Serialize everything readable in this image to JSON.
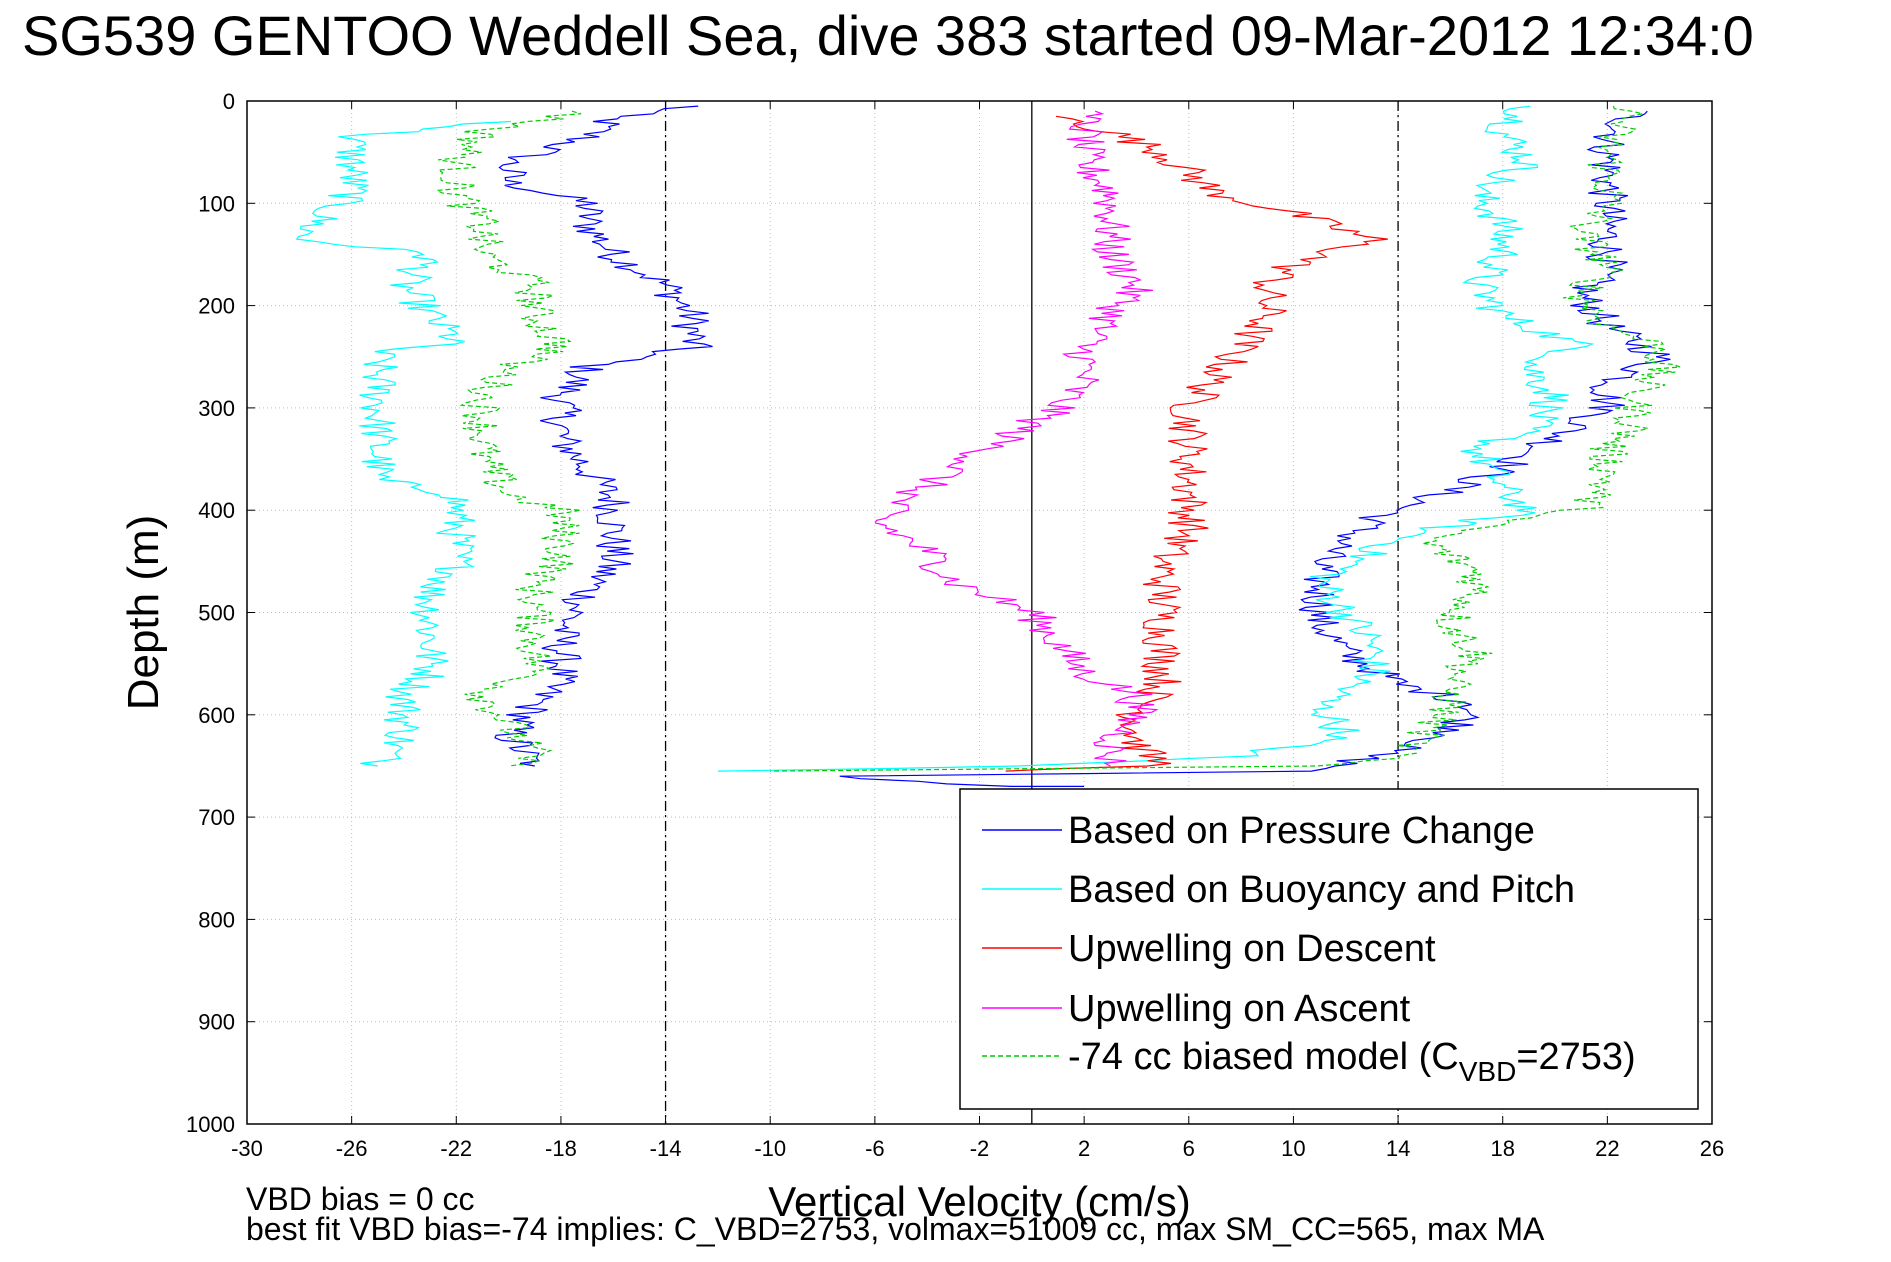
{
  "chart_data": {
    "type": "line",
    "title": "SG539 GENTOO Weddell Sea, dive 383 started 09-Mar-2012 12:34:0",
    "xlabel": "Vertical Velocity (cm/s)",
    "ylabel": "Depth (m)",
    "xlim": [
      -30,
      26
    ],
    "ylim": [
      0,
      1000
    ],
    "y_reversed": true,
    "xticks": [
      -30,
      -26,
      -22,
      -18,
      -14,
      -10,
      -6,
      -2,
      2,
      6,
      10,
      14,
      18,
      22,
      26
    ],
    "yticks": [
      0,
      100,
      200,
      300,
      400,
      500,
      600,
      700,
      800,
      900,
      1000
    ],
    "grid": true,
    "legend_position": "bottom-right",
    "reference_lines": [
      {
        "x": -14,
        "style": "dash-dot"
      },
      {
        "x": 0,
        "style": "solid"
      },
      {
        "x": 14,
        "style": "dash-dot"
      }
    ],
    "series": [
      {
        "name": "Based on Pressure Change",
        "color": "#0000ff",
        "style": "solid",
        "descent": [
          [
            -13,
            5
          ],
          [
            -16,
            15
          ],
          [
            -17,
            35
          ],
          [
            -20,
            60
          ],
          [
            -20,
            80
          ],
          [
            -17,
            100
          ],
          [
            -17,
            120
          ],
          [
            -16,
            150
          ],
          [
            -14,
            180
          ],
          [
            -13,
            210
          ],
          [
            -13,
            240
          ],
          [
            -17,
            260
          ],
          [
            -18,
            290
          ],
          [
            -18,
            330
          ],
          [
            -17,
            360
          ],
          [
            -16,
            390
          ],
          [
            -16,
            420
          ],
          [
            -16,
            450
          ],
          [
            -17,
            480
          ],
          [
            -18,
            520
          ],
          [
            -18,
            560
          ],
          [
            -19,
            590
          ],
          [
            -20,
            620
          ],
          [
            -19,
            650
          ]
        ],
        "ascent": [
          [
            23,
            10
          ],
          [
            22,
            40
          ],
          [
            22,
            70
          ],
          [
            22,
            100
          ],
          [
            22,
            130
          ],
          [
            22,
            160
          ],
          [
            21,
            190
          ],
          [
            22,
            220
          ],
          [
            24,
            250
          ],
          [
            22,
            280
          ],
          [
            22,
            300
          ],
          [
            20,
            330
          ],
          [
            18,
            360
          ],
          [
            15,
            390
          ],
          [
            13,
            410
          ],
          [
            11,
            450
          ],
          [
            11,
            480
          ],
          [
            11,
            510
          ],
          [
            12,
            540
          ],
          [
            14,
            570
          ],
          [
            17,
            590
          ],
          [
            16,
            620
          ],
          [
            13,
            640
          ],
          [
            11,
            655
          ],
          [
            -8,
            660
          ],
          [
            -1,
            670
          ],
          [
            2,
            670
          ]
        ]
      },
      {
        "name": "Based on Buoyancy and Pitch",
        "color": "#00ffff",
        "style": "solid",
        "descent": [
          [
            -20,
            20
          ],
          [
            -26,
            35
          ],
          [
            -26,
            60
          ],
          [
            -26,
            90
          ],
          [
            -27,
            110
          ],
          [
            -28,
            135
          ],
          [
            -23,
            150
          ],
          [
            -24,
            180
          ],
          [
            -23,
            210
          ],
          [
            -22,
            235
          ],
          [
            -25,
            245
          ],
          [
            -25,
            280
          ],
          [
            -25,
            310
          ],
          [
            -25,
            340
          ],
          [
            -25,
            370
          ],
          [
            -22,
            385
          ],
          [
            -22,
            400
          ],
          [
            -22,
            430
          ],
          [
            -22,
            460
          ],
          [
            -23,
            480
          ],
          [
            -23,
            520
          ],
          [
            -23,
            560
          ],
          [
            -24,
            580
          ],
          [
            -24,
            620
          ],
          [
            -25,
            650
          ]
        ],
        "ascent": [
          [
            19,
            5
          ],
          [
            18,
            30
          ],
          [
            19,
            60
          ],
          [
            17,
            90
          ],
          [
            18,
            120
          ],
          [
            18,
            150
          ],
          [
            17,
            180
          ],
          [
            18,
            210
          ],
          [
            21,
            240
          ],
          [
            19,
            260
          ],
          [
            20,
            290
          ],
          [
            19,
            320
          ],
          [
            17,
            340
          ],
          [
            18,
            380
          ],
          [
            19,
            400
          ],
          [
            15,
            420
          ],
          [
            13,
            440
          ],
          [
            11,
            470
          ],
          [
            12,
            500
          ],
          [
            13,
            530
          ],
          [
            13,
            560
          ],
          [
            11,
            590
          ],
          [
            12,
            620
          ],
          [
            8,
            640
          ],
          [
            0,
            650
          ],
          [
            -12,
            655
          ]
        ]
      },
      {
        "name": "Upwelling on Descent",
        "color": "#ff0000",
        "style": "solid",
        "descent": [
          [
            1,
            15
          ],
          [
            3,
            30
          ],
          [
            5,
            50
          ],
          [
            6,
            70
          ],
          [
            7,
            90
          ],
          [
            10,
            110
          ],
          [
            13,
            135
          ],
          [
            10,
            160
          ],
          [
            9,
            180
          ],
          [
            9,
            210
          ],
          [
            8,
            240
          ],
          [
            7,
            270
          ],
          [
            6,
            300
          ],
          [
            6,
            330
          ],
          [
            6,
            360
          ],
          [
            6,
            390
          ],
          [
            6,
            420
          ],
          [
            5,
            450
          ],
          [
            5,
            480
          ],
          [
            5,
            510
          ],
          [
            5,
            540
          ],
          [
            5,
            570
          ],
          [
            4,
            600
          ],
          [
            4,
            630
          ],
          [
            5,
            650
          ],
          [
            -1,
            655
          ]
        ]
      },
      {
        "name": "Upwelling on Ascent",
        "color": "#ff00ff",
        "style": "solid",
        "ascent": [
          [
            2,
            10
          ],
          [
            2,
            30
          ],
          [
            2,
            60
          ],
          [
            3,
            90
          ],
          [
            3,
            120
          ],
          [
            3,
            150
          ],
          [
            4,
            180
          ],
          [
            3,
            210
          ],
          [
            2,
            240
          ],
          [
            2,
            270
          ],
          [
            1,
            300
          ],
          [
            -1,
            330
          ],
          [
            -3,
            360
          ],
          [
            -5,
            390
          ],
          [
            -6,
            410
          ],
          [
            -4,
            440
          ],
          [
            -3,
            470
          ],
          [
            0,
            500
          ],
          [
            1,
            530
          ],
          [
            2,
            560
          ],
          [
            4,
            580
          ],
          [
            4,
            600
          ],
          [
            3,
            630
          ],
          [
            3,
            650
          ]
        ]
      },
      {
        "name": "-74 cc biased model (C_VBD=2753)",
        "color": "#00cc00",
        "style": "dashed",
        "descent": [
          [
            -17,
            10
          ],
          [
            -21,
            30
          ],
          [
            -22,
            60
          ],
          [
            -22,
            90
          ],
          [
            -21,
            120
          ],
          [
            -21,
            150
          ],
          [
            -19,
            180
          ],
          [
            -19,
            210
          ],
          [
            -18,
            240
          ],
          [
            -20,
            260
          ],
          [
            -21,
            290
          ],
          [
            -21,
            320
          ],
          [
            -21,
            350
          ],
          [
            -20,
            385
          ],
          [
            -18,
            400
          ],
          [
            -18,
            420
          ],
          [
            -18,
            450
          ],
          [
            -19,
            470
          ],
          [
            -19,
            500
          ],
          [
            -19,
            530
          ],
          [
            -19,
            560
          ],
          [
            -21,
            580
          ],
          [
            -20,
            610
          ],
          [
            -19,
            640
          ],
          [
            -20,
            650
          ]
        ],
        "ascent": [
          [
            23,
            5
          ],
          [
            22,
            40
          ],
          [
            22,
            70
          ],
          [
            22,
            100
          ],
          [
            21,
            130
          ],
          [
            22,
            160
          ],
          [
            21,
            190
          ],
          [
            22,
            220
          ],
          [
            24,
            240
          ],
          [
            24,
            260
          ],
          [
            23,
            290
          ],
          [
            23,
            320
          ],
          [
            22,
            340
          ],
          [
            22,
            370
          ],
          [
            21,
            400
          ],
          [
            18,
            410
          ],
          [
            15,
            430
          ],
          [
            17,
            460
          ],
          [
            17,
            480
          ],
          [
            16,
            510
          ],
          [
            17,
            540
          ],
          [
            16,
            570
          ],
          [
            16,
            590
          ],
          [
            15,
            620
          ],
          [
            14,
            640
          ],
          [
            11,
            650
          ],
          [
            -10,
            655
          ]
        ]
      }
    ],
    "legend": [
      {
        "label": "Based on Pressure Change",
        "color": "#0000ff",
        "style": "solid"
      },
      {
        "label": "Based on Buoyancy and Pitch",
        "color": "#00ffff",
        "style": "solid"
      },
      {
        "label": "Upwelling on Descent",
        "color": "#ff0000",
        "style": "solid"
      },
      {
        "label": "Upwelling on Ascent",
        "color": "#ff00ff",
        "style": "solid"
      },
      {
        "label_main": "-74 cc biased model (C",
        "label_sub": "VBD",
        "label_tail": "=2753)",
        "color": "#00cc00",
        "style": "dashed"
      }
    ]
  },
  "footer": {
    "line1": "VBD bias = 0 cc",
    "line2": "best fit VBD bias=-74 implies: C_VBD=2753, volmax=51009 cc, max SM_CC=565, max MA"
  }
}
